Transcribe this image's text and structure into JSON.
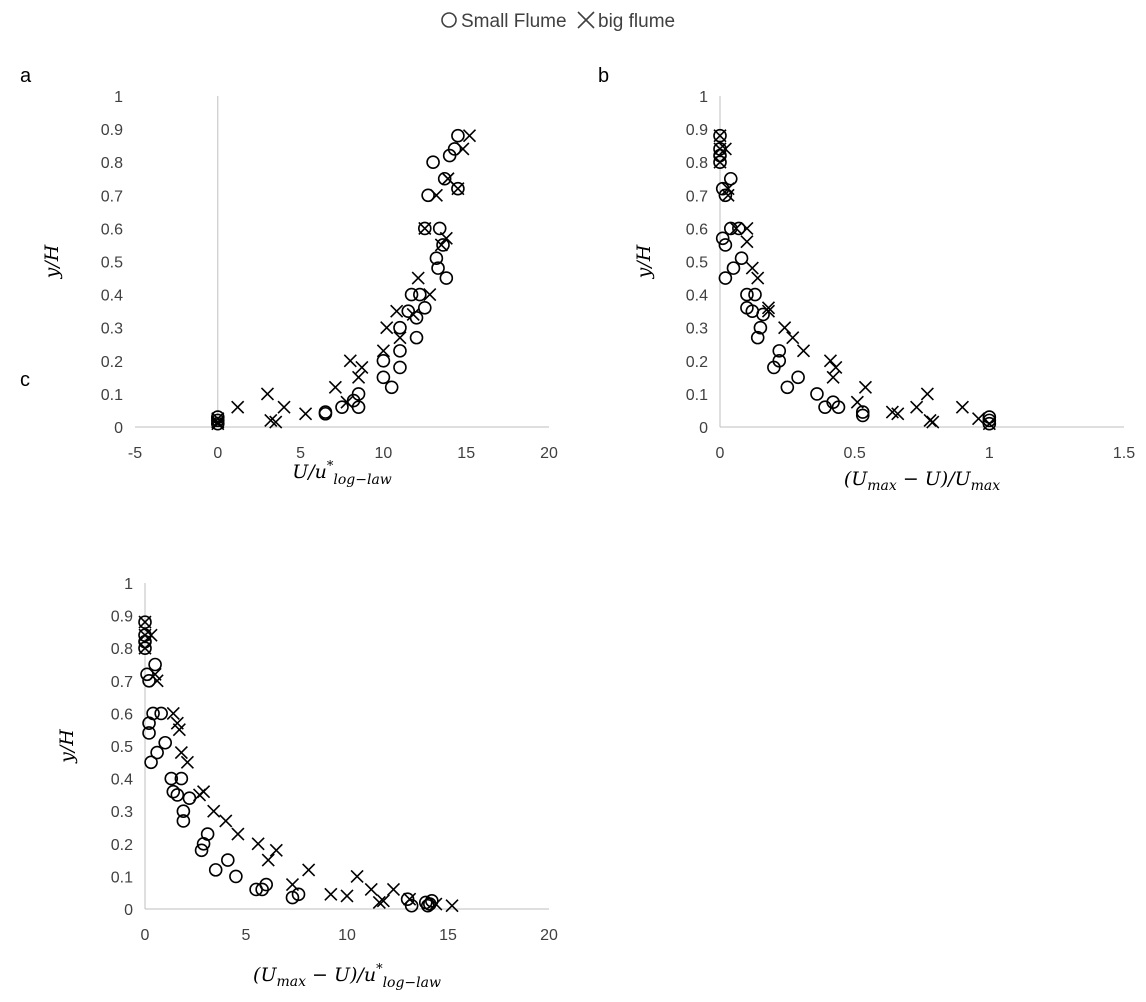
{
  "legend": {
    "entries": [
      {
        "marker": "circle",
        "label": "Small Flume"
      },
      {
        "marker": "cross",
        "label": "big flume"
      }
    ]
  },
  "colors": {
    "markers": "#000000",
    "axis": "#bfbfbf",
    "tick_text": "#404040"
  },
  "chart_data": [
    {
      "type": "scatter",
      "panel": "a",
      "xlabel": "U/u*log-law",
      "ylabel": "y/H",
      "xlim": [
        -5,
        20
      ],
      "ylim": [
        0,
        1
      ],
      "xticks": [
        -5,
        0,
        5,
        10,
        15,
        20
      ],
      "yticks": [
        0,
        0.1,
        0.2,
        0.3,
        0.4,
        0.5,
        0.6,
        0.7,
        0.8,
        0.9,
        1
      ],
      "grid": false,
      "series": [
        {
          "name": "Small Flume",
          "marker": "circle",
          "points": [
            [
              0,
              0.01
            ],
            [
              0,
              0.02
            ],
            [
              0,
              0.03
            ],
            [
              6.5,
              0.04
            ],
            [
              6.5,
              0.045
            ],
            [
              7.5,
              0.06
            ],
            [
              8.2,
              0.08
            ],
            [
              8.5,
              0.06
            ],
            [
              8.5,
              0.1
            ],
            [
              10,
              0.15
            ],
            [
              10,
              0.2
            ],
            [
              10.5,
              0.12
            ],
            [
              11,
              0.18
            ],
            [
              11,
              0.23
            ],
            [
              11,
              0.3
            ],
            [
              11.5,
              0.35
            ],
            [
              11.7,
              0.4
            ],
            [
              12,
              0.27
            ],
            [
              12,
              0.33
            ],
            [
              12.2,
              0.4
            ],
            [
              12.5,
              0.36
            ],
            [
              12.5,
              0.6
            ],
            [
              12.7,
              0.7
            ],
            [
              13,
              0.8
            ],
            [
              13.2,
              0.51
            ],
            [
              13.3,
              0.48
            ],
            [
              13.4,
              0.6
            ],
            [
              13.6,
              0.55
            ],
            [
              13.8,
              0.45
            ],
            [
              13.7,
              0.75
            ],
            [
              14,
              0.82
            ],
            [
              14.3,
              0.84
            ],
            [
              14.5,
              0.88
            ],
            [
              14.5,
              0.72
            ]
          ]
        },
        {
          "name": "big flume",
          "marker": "cross",
          "points": [
            [
              0,
              0.01
            ],
            [
              0,
              0.015
            ],
            [
              0,
              0.025
            ],
            [
              1.2,
              0.06
            ],
            [
              3,
              0.1
            ],
            [
              3.2,
              0.02
            ],
            [
              3.5,
              0.015
            ],
            [
              4,
              0.06
            ],
            [
              5.3,
              0.04
            ],
            [
              7.1,
              0.12
            ],
            [
              7.8,
              0.075
            ],
            [
              8,
              0.2
            ],
            [
              8.5,
              0.15
            ],
            [
              8.7,
              0.18
            ],
            [
              10,
              0.23
            ],
            [
              10.2,
              0.3
            ],
            [
              10.8,
              0.35
            ],
            [
              11,
              0.27
            ],
            [
              11.8,
              0.34
            ],
            [
              12.1,
              0.45
            ],
            [
              12.5,
              0.6
            ],
            [
              12.8,
              0.4
            ],
            [
              13.2,
              0.7
            ],
            [
              13.5,
              0.55
            ],
            [
              13.8,
              0.57
            ],
            [
              13.9,
              0.75
            ],
            [
              14.5,
              0.72
            ],
            [
              14.8,
              0.84
            ],
            [
              15.2,
              0.88
            ]
          ]
        }
      ]
    },
    {
      "type": "scatter",
      "panel": "b",
      "xlabel": "(Umax − U)/Umax",
      "ylabel": "y/H",
      "xlim": [
        0,
        1.5
      ],
      "ylim": [
        0,
        1
      ],
      "xticks": [
        0,
        0.5,
        1,
        1.5
      ],
      "yticks": [
        0,
        0.1,
        0.2,
        0.3,
        0.4,
        0.5,
        0.6,
        0.7,
        0.8,
        0.9,
        1
      ],
      "grid": false,
      "series": [
        {
          "name": "Small Flume",
          "marker": "circle",
          "points": [
            [
              0,
              0.88
            ],
            [
              0,
              0.84
            ],
            [
              0,
              0.82
            ],
            [
              0,
              0.8
            ],
            [
              0.01,
              0.72
            ],
            [
              0.02,
              0.7
            ],
            [
              0.04,
              0.75
            ],
            [
              0.01,
              0.57
            ],
            [
              0.02,
              0.55
            ],
            [
              0.02,
              0.45
            ],
            [
              0.04,
              0.6
            ],
            [
              0.05,
              0.48
            ],
            [
              0.07,
              0.6
            ],
            [
              0.08,
              0.51
            ],
            [
              0.1,
              0.4
            ],
            [
              0.1,
              0.36
            ],
            [
              0.12,
              0.35
            ],
            [
              0.13,
              0.4
            ],
            [
              0.14,
              0.27
            ],
            [
              0.15,
              0.3
            ],
            [
              0.16,
              0.34
            ],
            [
              0.2,
              0.18
            ],
            [
              0.22,
              0.2
            ],
            [
              0.22,
              0.23
            ],
            [
              0.25,
              0.12
            ],
            [
              0.29,
              0.15
            ],
            [
              0.36,
              0.1
            ],
            [
              0.39,
              0.06
            ],
            [
              0.42,
              0.075
            ],
            [
              0.44,
              0.06
            ],
            [
              0.53,
              0.045
            ],
            [
              0.53,
              0.035
            ],
            [
              1,
              0.01
            ],
            [
              1,
              0.02
            ],
            [
              1,
              0.03
            ]
          ]
        },
        {
          "name": "big flume",
          "marker": "cross",
          "points": [
            [
              0,
              0.88
            ],
            [
              0,
              0.84
            ],
            [
              0,
              0.8
            ],
            [
              0.02,
              0.84
            ],
            [
              0.03,
              0.72
            ],
            [
              0.03,
              0.7
            ],
            [
              0.06,
              0.6
            ],
            [
              0.1,
              0.6
            ],
            [
              0.1,
              0.56
            ],
            [
              0.12,
              0.48
            ],
            [
              0.14,
              0.45
            ],
            [
              0.18,
              0.36
            ],
            [
              0.18,
              0.35
            ],
            [
              0.24,
              0.3
            ],
            [
              0.27,
              0.27
            ],
            [
              0.31,
              0.23
            ],
            [
              0.41,
              0.2
            ],
            [
              0.42,
              0.15
            ],
            [
              0.43,
              0.18
            ],
            [
              0.51,
              0.075
            ],
            [
              0.54,
              0.12
            ],
            [
              0.64,
              0.045
            ],
            [
              0.66,
              0.04
            ],
            [
              0.73,
              0.06
            ],
            [
              0.77,
              0.1
            ],
            [
              0.78,
              0.02
            ],
            [
              0.79,
              0.015
            ],
            [
              0.9,
              0.06
            ],
            [
              0.96,
              0.025
            ],
            [
              1,
              0.01
            ]
          ]
        }
      ]
    },
    {
      "type": "scatter",
      "panel": "c",
      "xlabel": "(Umax − U)/u*log-law",
      "ylabel": "y/H",
      "xlim": [
        0,
        20
      ],
      "ylim": [
        0,
        1
      ],
      "xticks": [
        0,
        5,
        10,
        15,
        20
      ],
      "yticks": [
        0,
        0.1,
        0.2,
        0.3,
        0.4,
        0.5,
        0.6,
        0.7,
        0.8,
        0.9,
        1
      ],
      "grid": false,
      "series": [
        {
          "name": "Small Flume",
          "marker": "circle",
          "points": [
            [
              0,
              0.88
            ],
            [
              0,
              0.84
            ],
            [
              0,
              0.82
            ],
            [
              0,
              0.8
            ],
            [
              0.1,
              0.72
            ],
            [
              0.2,
              0.7
            ],
            [
              0.5,
              0.75
            ],
            [
              0.2,
              0.57
            ],
            [
              0.2,
              0.54
            ],
            [
              0.3,
              0.45
            ],
            [
              0.4,
              0.6
            ],
            [
              0.6,
              0.48
            ],
            [
              0.8,
              0.6
            ],
            [
              1,
              0.51
            ],
            [
              1.3,
              0.4
            ],
            [
              1.4,
              0.36
            ],
            [
              1.6,
              0.35
            ],
            [
              1.8,
              0.4
            ],
            [
              1.9,
              0.27
            ],
            [
              1.9,
              0.3
            ],
            [
              2.2,
              0.34
            ],
            [
              2.8,
              0.18
            ],
            [
              2.9,
              0.2
            ],
            [
              3.1,
              0.23
            ],
            [
              3.5,
              0.12
            ],
            [
              4.1,
              0.15
            ],
            [
              4.5,
              0.1
            ],
            [
              5.5,
              0.06
            ],
            [
              5.8,
              0.06
            ],
            [
              6,
              0.075
            ],
            [
              7.3,
              0.035
            ],
            [
              7.6,
              0.045
            ],
            [
              13,
              0.03
            ],
            [
              13.2,
              0.01
            ],
            [
              13.9,
              0.02
            ],
            [
              14,
              0.01
            ],
            [
              14.1,
              0.015
            ],
            [
              14.2,
              0.025
            ]
          ]
        },
        {
          "name": "big flume",
          "marker": "cross",
          "points": [
            [
              0,
              0.88
            ],
            [
              0,
              0.84
            ],
            [
              0,
              0.8
            ],
            [
              0.3,
              0.84
            ],
            [
              0.5,
              0.72
            ],
            [
              0.6,
              0.7
            ],
            [
              1.4,
              0.6
            ],
            [
              1.6,
              0.57
            ],
            [
              1.7,
              0.55
            ],
            [
              1.8,
              0.48
            ],
            [
              2.1,
              0.45
            ],
            [
              2.7,
              0.35
            ],
            [
              2.9,
              0.36
            ],
            [
              3.4,
              0.3
            ],
            [
              4,
              0.27
            ],
            [
              4.6,
              0.23
            ],
            [
              5.6,
              0.2
            ],
            [
              6.1,
              0.15
            ],
            [
              6.5,
              0.18
            ],
            [
              7.3,
              0.075
            ],
            [
              8.1,
              0.12
            ],
            [
              9.2,
              0.045
            ],
            [
              10,
              0.04
            ],
            [
              10.5,
              0.1
            ],
            [
              11.2,
              0.06
            ],
            [
              11.6,
              0.02
            ],
            [
              11.8,
              0.025
            ],
            [
              12.3,
              0.06
            ],
            [
              13.1,
              0.03
            ],
            [
              14.4,
              0.015
            ],
            [
              15.2,
              0.01
            ]
          ]
        }
      ]
    }
  ]
}
